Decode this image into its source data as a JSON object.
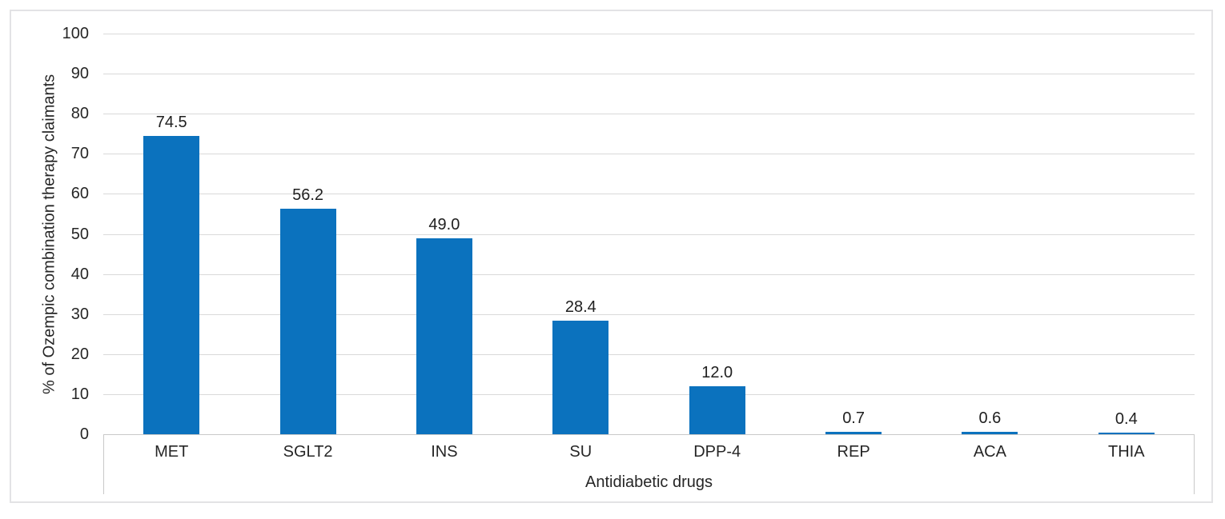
{
  "chart_data": {
    "type": "bar",
    "title": "",
    "categories": [
      "MET",
      "SGLT2",
      "INS",
      "SU",
      "DPP-4",
      "REP",
      "ACA",
      "THIA"
    ],
    "values": [
      74.5,
      56.2,
      49.0,
      28.4,
      12.0,
      0.7,
      0.6,
      0.4
    ],
    "value_labels": [
      "74.5",
      "56.2",
      "49.0",
      "28.4",
      "12.0",
      "0.7",
      "0.6",
      "0.4"
    ],
    "xlabel": "Antidiabetic drugs",
    "ylabel": "% of Ozempic combination therapy claimants",
    "ylim": [
      0,
      100
    ],
    "ytick_step": 10,
    "ytick_labels": [
      "0",
      "10",
      "20",
      "30",
      "40",
      "50",
      "60",
      "70",
      "80",
      "90",
      "100"
    ],
    "grid": "horizontal-only",
    "legend": "none",
    "colors": {
      "bar": "#0b72be",
      "gridline": "#d9d9d9",
      "axis_line": "#c9c9c9",
      "frame_border": "#e3e3e5",
      "text": "#262626",
      "background": "#ffffff"
    }
  }
}
